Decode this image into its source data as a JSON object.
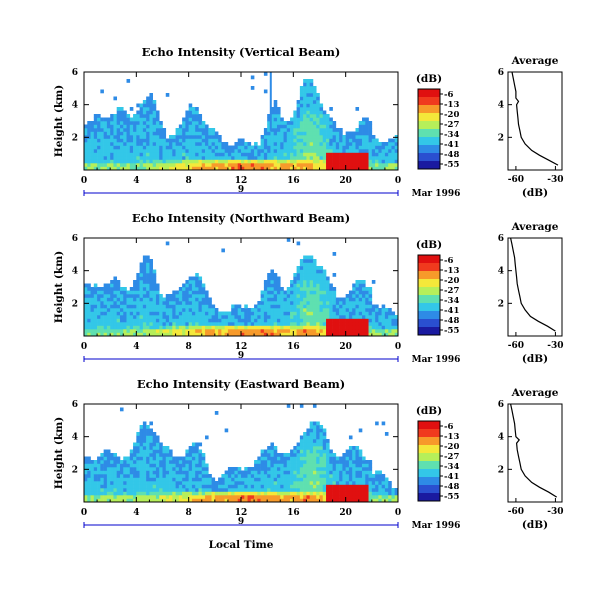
{
  "figure": {
    "xlabel": "Local Time",
    "date_label": "Mar 1996",
    "day_label": "9"
  },
  "colorbar": {
    "unit": "(dB)",
    "ticks": [
      "-6",
      "-13",
      "-20",
      "-27",
      "-34",
      "-41",
      "-48",
      "-55"
    ],
    "range": [
      -55,
      -6
    ],
    "colors": [
      "#1a1aa0",
      "#2a4fd0",
      "#2e8be6",
      "#33c7e8",
      "#5fe0b0",
      "#b6ef5a",
      "#f4e83a",
      "#f79a2a",
      "#f03a1e",
      "#e01010"
    ]
  },
  "chart_data": [
    {
      "type": "heatmap",
      "title": "Echo Intensity (Vertical Beam)",
      "xlabel": "",
      "ylabel": "Height (km)",
      "x_ticks": [
        "0",
        "4",
        "8",
        "12",
        "16",
        "20",
        "0"
      ],
      "xlim": [
        0,
        24
      ],
      "y_ticks": [
        "2",
        "4",
        "6"
      ],
      "ylim": [
        0,
        6
      ],
      "profile": {
        "title": "Average",
        "xlabel": "(dB)",
        "x_ticks": [
          "-60",
          "-30"
        ],
        "y_ticks": [
          "2",
          "4",
          "6"
        ],
        "xlim": [
          -66,
          -25
        ],
        "ylim": [
          0,
          6
        ],
        "points": [
          [
            -28,
            0.3
          ],
          [
            -35,
            0.6
          ],
          [
            -42,
            0.9
          ],
          [
            -48,
            1.2
          ],
          [
            -53,
            1.6
          ],
          [
            -56,
            2.0
          ],
          [
            -57,
            2.4
          ],
          [
            -58,
            2.8
          ],
          [
            -58.5,
            3.2
          ],
          [
            -59,
            3.6
          ],
          [
            -59.5,
            4.0
          ],
          [
            -58,
            4.2
          ],
          [
            -60,
            4.4
          ],
          [
            -60,
            4.8
          ],
          [
            -61,
            5.2
          ],
          [
            -62,
            5.6
          ],
          [
            -63,
            6.0
          ]
        ]
      }
    },
    {
      "type": "heatmap",
      "title": "Echo Intensity (Northward Beam)",
      "xlabel": "",
      "ylabel": "Height (km)",
      "x_ticks": [
        "0",
        "4",
        "8",
        "12",
        "16",
        "20",
        "0"
      ],
      "xlim": [
        0,
        24
      ],
      "y_ticks": [
        "2",
        "4",
        "6"
      ],
      "ylim": [
        0,
        6
      ],
      "profile": {
        "title": "Average",
        "xlabel": "(dB)",
        "x_ticks": [
          "-60",
          "-30"
        ],
        "y_ticks": [
          "2",
          "4",
          "6"
        ],
        "xlim": [
          -66,
          -25
        ],
        "ylim": [
          0,
          6
        ],
        "points": [
          [
            -30,
            0.3
          ],
          [
            -36,
            0.6
          ],
          [
            -43,
            0.9
          ],
          [
            -49,
            1.2
          ],
          [
            -53,
            1.6
          ],
          [
            -56,
            2.0
          ],
          [
            -57,
            2.4
          ],
          [
            -58,
            2.8
          ],
          [
            -59,
            3.2
          ],
          [
            -59.5,
            3.6
          ],
          [
            -60,
            4.0
          ],
          [
            -60.5,
            4.4
          ],
          [
            -61,
            4.8
          ],
          [
            -62,
            5.2
          ],
          [
            -63,
            5.6
          ],
          [
            -64,
            6.0
          ]
        ]
      }
    },
    {
      "type": "heatmap",
      "title": "Echo Intensity (Eastward Beam)",
      "xlabel": "Local Time",
      "ylabel": "Height (km)",
      "x_ticks": [
        "0",
        "4",
        "8",
        "12",
        "16",
        "20",
        "0"
      ],
      "xlim": [
        0,
        24
      ],
      "y_ticks": [
        "2",
        "4",
        "6"
      ],
      "ylim": [
        0,
        6
      ],
      "profile": {
        "title": "Average",
        "xlabel": "(dB)",
        "x_ticks": [
          "-60",
          "-30"
        ],
        "y_ticks": [
          "2",
          "4",
          "6"
        ],
        "xlim": [
          -66,
          -25
        ],
        "ylim": [
          0,
          6
        ],
        "points": [
          [
            -29,
            0.3
          ],
          [
            -35,
            0.6
          ],
          [
            -42,
            0.9
          ],
          [
            -48,
            1.2
          ],
          [
            -53,
            1.6
          ],
          [
            -56,
            2.0
          ],
          [
            -57,
            2.4
          ],
          [
            -58,
            2.8
          ],
          [
            -59,
            3.2
          ],
          [
            -59.5,
            3.6
          ],
          [
            -57.5,
            3.8
          ],
          [
            -60,
            4.0
          ],
          [
            -60.5,
            4.4
          ],
          [
            -61,
            4.8
          ],
          [
            -62,
            5.2
          ],
          [
            -63,
            5.6
          ],
          [
            -64,
            6.0
          ]
        ]
      }
    }
  ]
}
